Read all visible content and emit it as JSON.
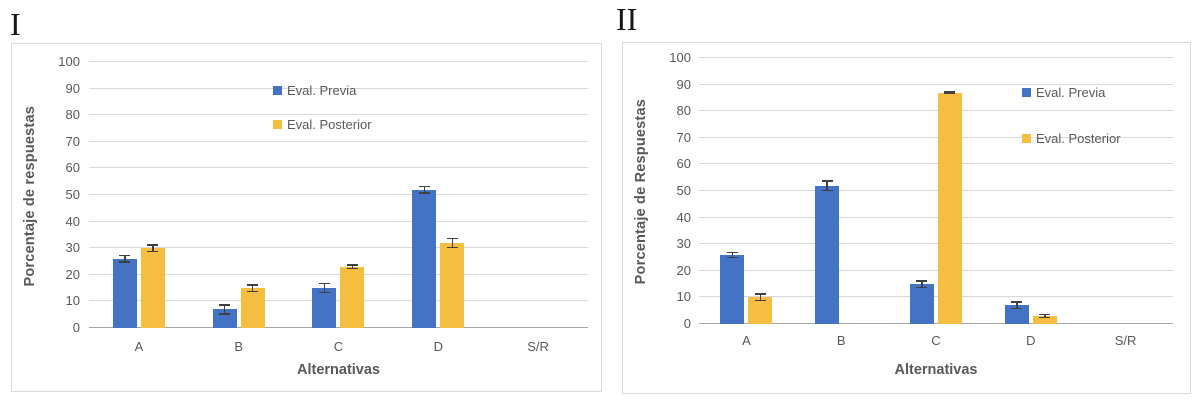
{
  "colors": {
    "previa": "#4472C4",
    "posterior": "#F5BE41",
    "gridline": "#D9D9D9",
    "axis_line": "#A6A6A6",
    "error_bar": "#404040",
    "text": "#595959",
    "panel_border": "#D9D9D9",
    "background": "#FFFFFF"
  },
  "chart_data": [
    {
      "type": "bar",
      "panel_label": "I",
      "title": "",
      "xlabel": "Alternativas",
      "ylabel": "Porcentaje de respuestas",
      "categories": [
        "A",
        "B",
        "C",
        "D",
        "S/R"
      ],
      "series": [
        {
          "name": "Eval. Previa",
          "color_key": "previa",
          "values": [
            26,
            7,
            15,
            52,
            0
          ],
          "errors": [
            1.5,
            2,
            2,
            1.5,
            0
          ]
        },
        {
          "name": "Eval. Posterior",
          "color_key": "posterior",
          "values": [
            30,
            15,
            23,
            32,
            0
          ],
          "errors": [
            1.5,
            1.5,
            1,
            2,
            0
          ]
        }
      ],
      "ylim": [
        0,
        100
      ],
      "ytick_step": 10,
      "grid": true,
      "error_bars": true,
      "legend_position": "inside-upper-center"
    },
    {
      "type": "bar",
      "panel_label": "II",
      "title": "",
      "xlabel": "Alternativas",
      "ylabel": "Porcentaje de Respuestas",
      "categories": [
        "A",
        "B",
        "C",
        "D",
        "S/R"
      ],
      "series": [
        {
          "name": "Eval. Previa",
          "color_key": "previa",
          "values": [
            26,
            52,
            15,
            7,
            0
          ],
          "errors": [
            1.2,
            2,
            1.5,
            1.5,
            0
          ]
        },
        {
          "name": "Eval. Posterior",
          "color_key": "posterior",
          "values": [
            10,
            0,
            87,
            3,
            0
          ],
          "errors": [
            1.5,
            0,
            0.5,
            0.8,
            0
          ]
        }
      ],
      "ylim": [
        0,
        100
      ],
      "ytick_step": 10,
      "grid": true,
      "error_bars": true,
      "legend_position": "inside-upper-right"
    }
  ]
}
